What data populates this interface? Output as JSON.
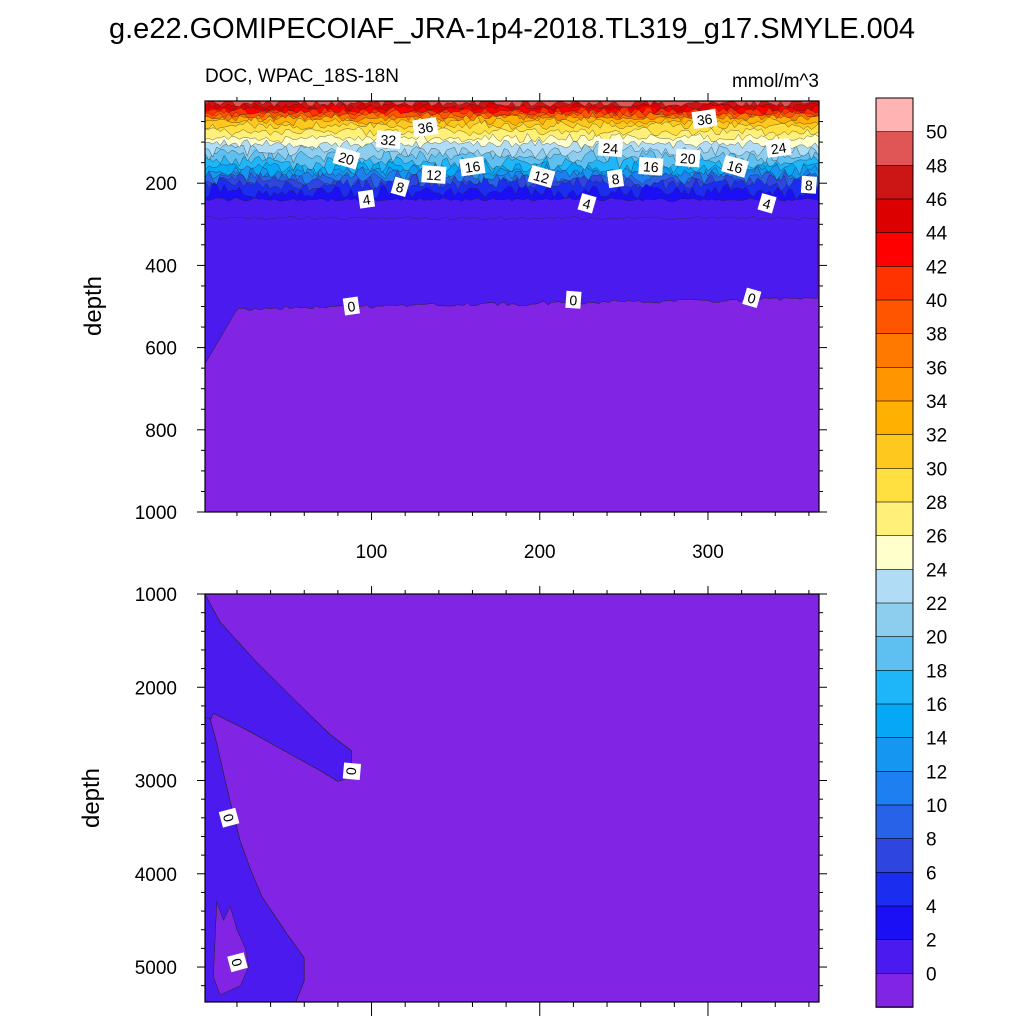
{
  "figure": {
    "title": "g.e22.GOMIPECOIAF_JRA-1p4-2018.TL319_g17.SMYLE.004",
    "left_label": "DOC, WPAC_18S-18N",
    "units": "mmol/m^3"
  },
  "colors": {
    "bg": "#ffffff",
    "below_zero": "#8224e3",
    "level_0_2": "#4b1aee",
    "level_2_4": "#1b0ff5"
  },
  "chart_data": [
    {
      "type": "filled-contour",
      "panel": "upper",
      "title": "DOC, WPAC_18S-18N",
      "units": "mmol/m^3",
      "xlabel": "",
      "ylabel": "depth",
      "xlim": [
        1,
        366
      ],
      "ylim": [
        1000,
        0
      ],
      "xticks": [
        100,
        200,
        300
      ],
      "xtick_labels": [
        "100",
        "200",
        "300"
      ],
      "yticks": [
        200,
        400,
        600,
        800,
        1000
      ],
      "ytick_labels": [
        "200",
        "400",
        "600",
        "800",
        "1000"
      ],
      "approx_isoline_depths": [
        {
          "level": 36,
          "depth": 35
        },
        {
          "level": 32,
          "depth": 60
        },
        {
          "level": 28,
          "depth": 90
        },
        {
          "level": 24,
          "depth": 120
        },
        {
          "level": 20,
          "depth": 150
        },
        {
          "level": 16,
          "depth": 170
        },
        {
          "level": 12,
          "depth": 185
        },
        {
          "level": 8,
          "depth": 200
        },
        {
          "level": 4,
          "depth": 240
        },
        {
          "level": 2,
          "depth": 285
        },
        {
          "level": 0,
          "depth": 500
        }
      ],
      "contour_labels": [
        {
          "text": "36",
          "x": 132,
          "depth": 65
        },
        {
          "text": "32",
          "x": 110,
          "depth": 95
        },
        {
          "text": "20",
          "x": 85,
          "depth": 140
        },
        {
          "text": "16",
          "x": 160,
          "depth": 160
        },
        {
          "text": "12",
          "x": 137,
          "depth": 180
        },
        {
          "text": "8",
          "x": 117,
          "depth": 210
        },
        {
          "text": "4",
          "x": 97,
          "depth": 240
        },
        {
          "text": "24",
          "x": 242,
          "depth": 115
        },
        {
          "text": "12",
          "x": 201,
          "depth": 185
        },
        {
          "text": "8",
          "x": 245,
          "depth": 190
        },
        {
          "text": "16",
          "x": 266,
          "depth": 160
        },
        {
          "text": "4",
          "x": 228,
          "depth": 250
        },
        {
          "text": "36",
          "x": 298,
          "depth": 45
        },
        {
          "text": "20",
          "x": 288,
          "depth": 140
        },
        {
          "text": "16",
          "x": 316,
          "depth": 160
        },
        {
          "text": "24",
          "x": 342,
          "depth": 115
        },
        {
          "text": "8",
          "x": 360,
          "depth": 205
        },
        {
          "text": "4",
          "x": 335,
          "depth": 250
        },
        {
          "text": "0",
          "x": 88,
          "depth": 500
        },
        {
          "text": "0",
          "x": 220,
          "depth": 485
        },
        {
          "text": "0",
          "x": 326,
          "depth": 480
        }
      ]
    },
    {
      "type": "filled-contour",
      "panel": "lower",
      "xlabel": "",
      "ylabel": "depth",
      "xlim": [
        1,
        366
      ],
      "ylim": [
        5375,
        1000
      ],
      "yticks": [
        1000,
        2000,
        3000,
        4000,
        5000
      ],
      "ytick_labels": [
        "1000",
        "2000",
        "3000",
        "4000",
        "5000"
      ],
      "regions": [
        {
          "level_range": "0-2",
          "description": "tongue from 1000 to 3000 m near days 1-88"
        },
        {
          "level_range": "0-2",
          "description": "wedge from 2300 m to bottom near days 1-60"
        }
      ],
      "contour_labels": [
        {
          "text": "0",
          "x": 88,
          "depth": 2900
        },
        {
          "text": "0",
          "x": 15,
          "depth": 3400
        },
        {
          "text": "0",
          "x": 20,
          "depth": 4950
        }
      ]
    }
  ],
  "colorbar": {
    "labels": [
      "50",
      "48",
      "46",
      "44",
      "42",
      "40",
      "38",
      "36",
      "34",
      "32",
      "30",
      "28",
      "26",
      "24",
      "22",
      "20",
      "18",
      "16",
      "14",
      "12",
      "10",
      "8",
      "6",
      "4",
      "2",
      "0"
    ],
    "colors": [
      "#ffb3b3",
      "#e05555",
      "#cc1515",
      "#dd0000",
      "#ff0000",
      "#ff3300",
      "#ff5500",
      "#ff7800",
      "#ff9500",
      "#ffb000",
      "#ffc81e",
      "#ffe040",
      "#fff07a",
      "#ffffcc",
      "#b0dcf5",
      "#8dcdee",
      "#5ec0f0",
      "#1eb6f8",
      "#04a8f5",
      "#1596f0",
      "#1d7ff0",
      "#2862e8",
      "#2e45e0",
      "#1b2ef0",
      "#1b0ff5",
      "#4b1aee",
      "#8224e3"
    ]
  }
}
